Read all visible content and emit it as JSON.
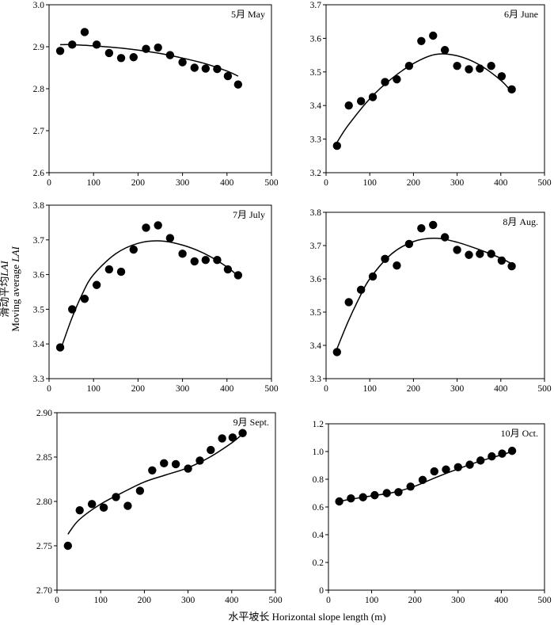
{
  "figure": {
    "xlabel": "水平坡长 Horizontal slope length (m)",
    "ylabel_cn": "滑动平均",
    "ylabel_en": "Moving average"
  },
  "chart_data": [
    {
      "type": "scatter",
      "title": "5月 May",
      "xlim": [
        0,
        500
      ],
      "xticks": [
        "0",
        "100",
        "200",
        "300",
        "400",
        "500"
      ],
      "ylim": [
        2.6,
        3.0
      ],
      "yticks": [
        "2.6",
        "2.7",
        "2.8",
        "2.9",
        "3.0"
      ],
      "x": [
        25,
        52,
        80,
        107,
        135,
        162,
        190,
        218,
        245,
        272,
        300,
        327,
        352,
        378,
        402,
        425
      ],
      "y": [
        2.89,
        2.905,
        2.935,
        2.905,
        2.885,
        2.873,
        2.875,
        2.895,
        2.898,
        2.88,
        2.863,
        2.85,
        2.848,
        2.847,
        2.83,
        2.81
      ],
      "fit_x": [
        25,
        50,
        100,
        150,
        200,
        250,
        300,
        350,
        400,
        425
      ],
      "fit_y": [
        2.905,
        2.905,
        2.902,
        2.898,
        2.892,
        2.884,
        2.873,
        2.86,
        2.842,
        2.83
      ]
    },
    {
      "type": "scatter",
      "title": "6月 June",
      "xlim": [
        0,
        500
      ],
      "xticks": [
        "0",
        "100",
        "200",
        "300",
        "400",
        "500"
      ],
      "ylim": [
        3.2,
        3.7
      ],
      "yticks": [
        "3.2",
        "3.3",
        "3.4",
        "3.5",
        "3.6",
        "3.7"
      ],
      "x": [
        25,
        52,
        80,
        107,
        135,
        162,
        190,
        218,
        245,
        272,
        300,
        327,
        352,
        378,
        402,
        425
      ],
      "y": [
        3.28,
        3.4,
        3.413,
        3.425,
        3.47,
        3.478,
        3.518,
        3.592,
        3.608,
        3.565,
        3.518,
        3.508,
        3.51,
        3.518,
        3.487,
        3.448
      ],
      "fit_x": [
        25,
        50,
        100,
        150,
        200,
        250,
        300,
        350,
        400,
        425
      ],
      "fit_y": [
        3.29,
        3.34,
        3.42,
        3.48,
        3.525,
        3.552,
        3.548,
        3.522,
        3.475,
        3.44
      ]
    },
    {
      "type": "scatter",
      "title": "7月 July",
      "xlim": [
        0,
        500
      ],
      "xticks": [
        "0",
        "100",
        "200",
        "300",
        "400",
        "500"
      ],
      "ylim": [
        3.3,
        3.8
      ],
      "yticks": [
        "3.3",
        "3.4",
        "3.5",
        "3.6",
        "3.7",
        "3.8"
      ],
      "x": [
        25,
        52,
        80,
        107,
        135,
        162,
        190,
        218,
        245,
        272,
        300,
        327,
        352,
        378,
        402,
        425
      ],
      "y": [
        3.39,
        3.5,
        3.53,
        3.57,
        3.615,
        3.608,
        3.672,
        3.735,
        3.742,
        3.705,
        3.66,
        3.638,
        3.642,
        3.642,
        3.615,
        3.598
      ],
      "fit_x": [
        25,
        50,
        75,
        100,
        150,
        200,
        250,
        300,
        350,
        400,
        425
      ],
      "fit_y": [
        3.38,
        3.47,
        3.545,
        3.6,
        3.66,
        3.69,
        3.697,
        3.685,
        3.66,
        3.622,
        3.595
      ]
    },
    {
      "type": "scatter",
      "title": "8月 Aug.",
      "xlim": [
        0,
        500
      ],
      "xticks": [
        "0",
        "100",
        "200",
        "300",
        "400",
        "500"
      ],
      "ylim": [
        3.3,
        3.8
      ],
      "yticks": [
        "3.3",
        "3.4",
        "3.5",
        "3.6",
        "3.7",
        "3.8"
      ],
      "x": [
        25,
        52,
        80,
        107,
        135,
        162,
        190,
        218,
        245,
        272,
        300,
        327,
        352,
        378,
        402,
        425
      ],
      "y": [
        3.38,
        3.53,
        3.567,
        3.607,
        3.66,
        3.64,
        3.705,
        3.752,
        3.762,
        3.725,
        3.687,
        3.672,
        3.675,
        3.675,
        3.655,
        3.638
      ],
      "fit_x": [
        25,
        50,
        75,
        100,
        150,
        200,
        250,
        300,
        350,
        400,
        425
      ],
      "fit_y": [
        3.39,
        3.47,
        3.54,
        3.6,
        3.675,
        3.712,
        3.722,
        3.71,
        3.688,
        3.662,
        3.645
      ]
    },
    {
      "type": "scatter",
      "title": "9月 Sept.",
      "xlim": [
        0,
        500
      ],
      "xticks": [
        "0",
        "100",
        "200",
        "300",
        "400",
        "500"
      ],
      "ylim": [
        2.7,
        2.9
      ],
      "yticks": [
        "2.70",
        "2.75",
        "2.80",
        "2.85",
        "2.90"
      ],
      "x": [
        25,
        52,
        80,
        107,
        135,
        162,
        190,
        218,
        245,
        272,
        300,
        327,
        352,
        378,
        402,
        425
      ],
      "y": [
        2.75,
        2.79,
        2.797,
        2.793,
        2.805,
        2.795,
        2.812,
        2.835,
        2.843,
        2.842,
        2.837,
        2.846,
        2.858,
        2.871,
        2.872,
        2.877
      ],
      "fit_x": [
        25,
        50,
        100,
        150,
        200,
        250,
        300,
        350,
        400,
        425
      ],
      "fit_y": [
        2.763,
        2.779,
        2.797,
        2.81,
        2.822,
        2.83,
        2.838,
        2.85,
        2.866,
        2.876
      ]
    },
    {
      "type": "scatter",
      "title": "10月 Oct.",
      "xlim": [
        0,
        500
      ],
      "xticks": [
        "0",
        "100",
        "200",
        "300",
        "400",
        "500"
      ],
      "ylim": [
        0,
        1.2
      ],
      "yticks": [
        "0",
        "0.2",
        "0.4",
        "0.6",
        "0.8",
        "1.0",
        "1.2"
      ],
      "x": [
        25,
        52,
        80,
        107,
        135,
        162,
        190,
        218,
        245,
        272,
        300,
        327,
        352,
        378,
        402,
        425
      ],
      "y": [
        0.64,
        0.662,
        0.67,
        0.685,
        0.7,
        0.707,
        0.747,
        0.795,
        0.857,
        0.87,
        0.887,
        0.905,
        0.935,
        0.965,
        0.985,
        1.005
      ],
      "fit_x": [
        25,
        50,
        100,
        150,
        200,
        250,
        300,
        350,
        400,
        425
      ],
      "fit_y": [
        0.64,
        0.655,
        0.68,
        0.705,
        0.75,
        0.815,
        0.875,
        0.93,
        0.975,
        1.0
      ]
    }
  ]
}
